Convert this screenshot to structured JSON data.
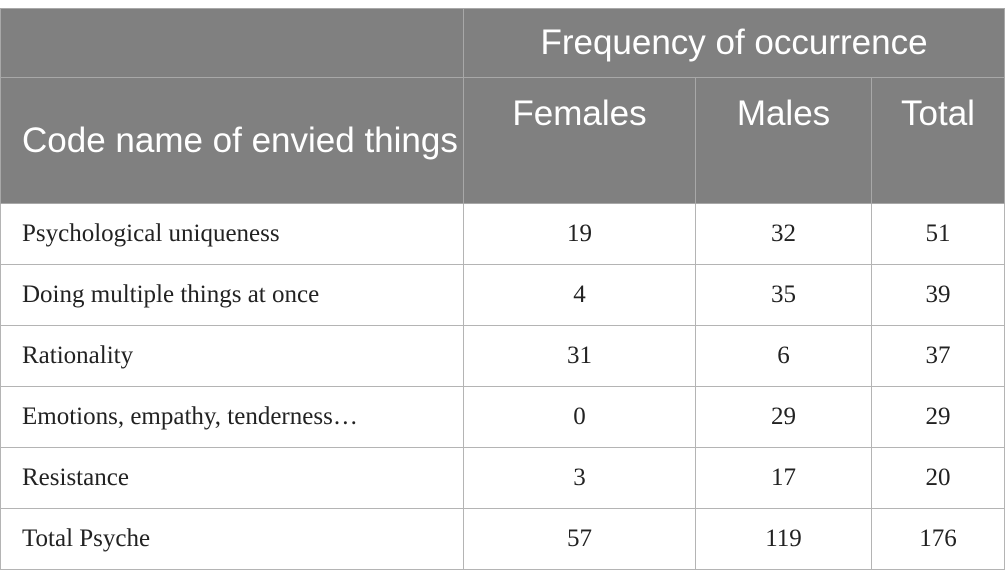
{
  "table": {
    "group_header": "Frequency of occurrence",
    "row_header": "Code name of envied things",
    "columns": [
      "Females",
      "Males",
      "Total"
    ],
    "rows": [
      {
        "label": "Psychological uniqueness",
        "values": [
          "19",
          "32",
          "51"
        ]
      },
      {
        "label": "Doing multiple things at once",
        "values": [
          "4",
          "35",
          "39"
        ]
      },
      {
        "label": "Rationality",
        "values": [
          "31",
          "6",
          "37"
        ]
      },
      {
        "label": "Emotions, empathy, tenderness…",
        "values": [
          "0",
          "29",
          "29"
        ]
      },
      {
        "label": "Resistance",
        "values": [
          "3",
          "17",
          "20"
        ]
      },
      {
        "label": "Total Psyche",
        "values": [
          "57",
          "119",
          "176"
        ]
      }
    ],
    "colors": {
      "header_bg": "#808080",
      "header_text": "#ffffff",
      "grid": "#b4b4b4"
    }
  }
}
